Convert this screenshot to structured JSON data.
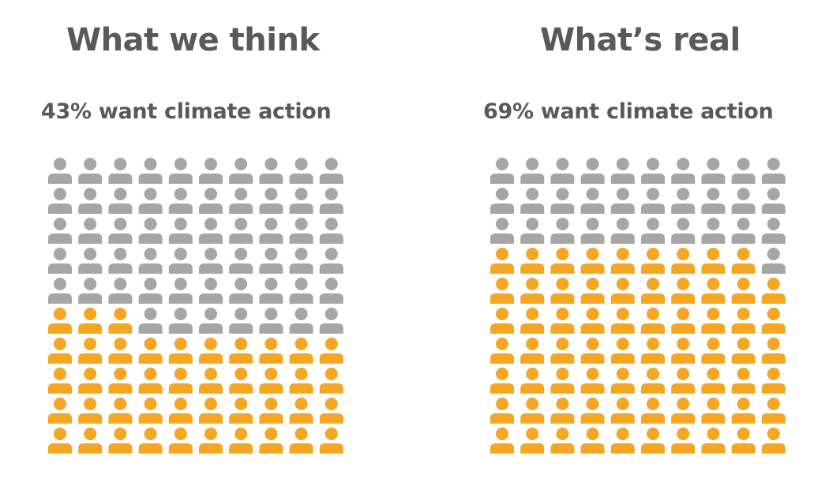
{
  "chart_data": [
    {
      "type": "pictogram",
      "title": "What we think",
      "subtitle": "43% want climate action",
      "total_icons": 100,
      "highlighted_icons": 43,
      "value_percent": 43,
      "columns": 10,
      "rows": 10,
      "colors": {
        "highlighted": "#F5A623",
        "other": "#A6A6A6"
      }
    },
    {
      "type": "pictogram",
      "title": "What’s real",
      "subtitle": "69% want climate action",
      "total_icons": 100,
      "highlighted_icons": 69,
      "value_percent": 69,
      "columns": 10,
      "rows": 10,
      "colors": {
        "highlighted": "#F5A623",
        "other": "#A6A6A6"
      }
    }
  ],
  "icon_name": "person-icon"
}
